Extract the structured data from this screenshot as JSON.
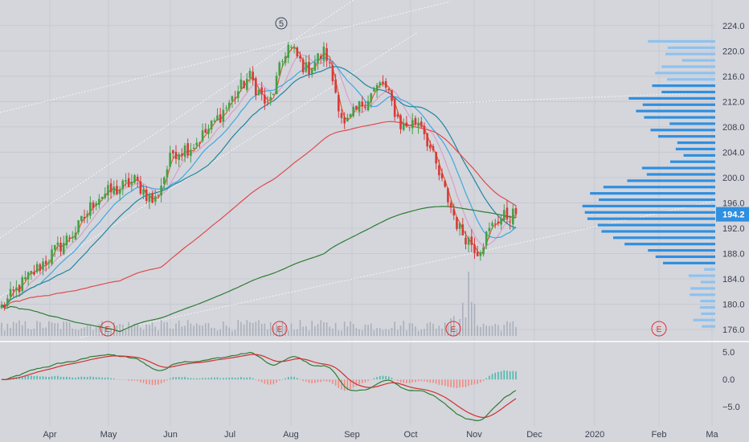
{
  "chart_data": {
    "type": "candlestick",
    "instrument_price_label": "194.2",
    "wave_label": "5",
    "earnings_marker_label": "E",
    "x_tick_labels": [
      "Apr",
      "May",
      "Jun",
      "Jul",
      "Aug",
      "Sep",
      "Oct",
      "Nov",
      "Dec",
      "2020",
      "Feb",
      "Ma"
    ],
    "price_axis": {
      "ticks": [
        "224.0",
        "220.0",
        "216.0",
        "212.0",
        "208.0",
        "204.0",
        "200.0",
        "196.0",
        "192.0",
        "188.0",
        "184.0",
        "180.0",
        "176.0"
      ],
      "range": [
        175,
        226
      ]
    },
    "macd_axis": {
      "ticks": [
        "5.0",
        "0.0",
        "−5.0"
      ],
      "range": [
        -8.5,
        6.5
      ]
    },
    "price_keyframes": [
      {
        "m": "Mar",
        "p": 179.5
      },
      {
        "m": "Mar",
        "p": 183
      },
      {
        "m": "Apr",
        "p": 186
      },
      {
        "m": "Apr",
        "p": 189
      },
      {
        "m": "Apr",
        "p": 192
      },
      {
        "m": "May",
        "p": 197
      },
      {
        "m": "May",
        "p": 198
      },
      {
        "m": "May",
        "p": 199.5
      },
      {
        "m": "Jun",
        "p": 196
      },
      {
        "m": "Jun",
        "p": 204
      },
      {
        "m": "Jun",
        "p": 205
      },
      {
        "m": "Jul",
        "p": 208
      },
      {
        "m": "Jul",
        "p": 212
      },
      {
        "m": "Jul",
        "p": 216
      },
      {
        "m": "Aug",
        "p": 211
      },
      {
        "m": "Aug",
        "p": 221
      },
      {
        "m": "Aug",
        "p": 217
      },
      {
        "m": "Sep",
        "p": 220
      },
      {
        "m": "Sep",
        "p": 208
      },
      {
        "m": "Sep",
        "p": 212
      },
      {
        "m": "Oct",
        "p": 215
      },
      {
        "m": "Oct",
        "p": 208
      },
      {
        "m": "Oct",
        "p": 209
      },
      {
        "m": "Oct",
        "p": 200
      },
      {
        "m": "Oct",
        "p": 192
      },
      {
        "m": "Nov",
        "p": 188.5
      },
      {
        "m": "Nov",
        "p": 193.5
      },
      {
        "m": "Nov",
        "p": 194.2
      }
    ],
    "moving_averages": [
      {
        "name": "ma-fast",
        "color": "#e0602a"
      },
      {
        "name": "ma-short",
        "color": "#d8a0c8"
      },
      {
        "name": "ma-20",
        "color": "#3fa8e0"
      },
      {
        "name": "ma-50",
        "color": "#1f86a0"
      },
      {
        "name": "ma-100",
        "color": "#e04b4b"
      },
      {
        "name": "ma-200",
        "color": "#2e7d32"
      }
    ],
    "colors": {
      "up": "#43a047",
      "down": "#d73a3a",
      "volume": "#aab0bb",
      "volume_profile": "#2f8fe0",
      "volume_profile_light": "#8ec2ef",
      "price_badge": "#2f8fe0",
      "macd_line": "#2e7d32",
      "signal_line": "#d32f2f",
      "hist_pos": "#4db6ac",
      "hist_neg": "#ef8a80",
      "background": "#d4d6dc"
    }
  }
}
